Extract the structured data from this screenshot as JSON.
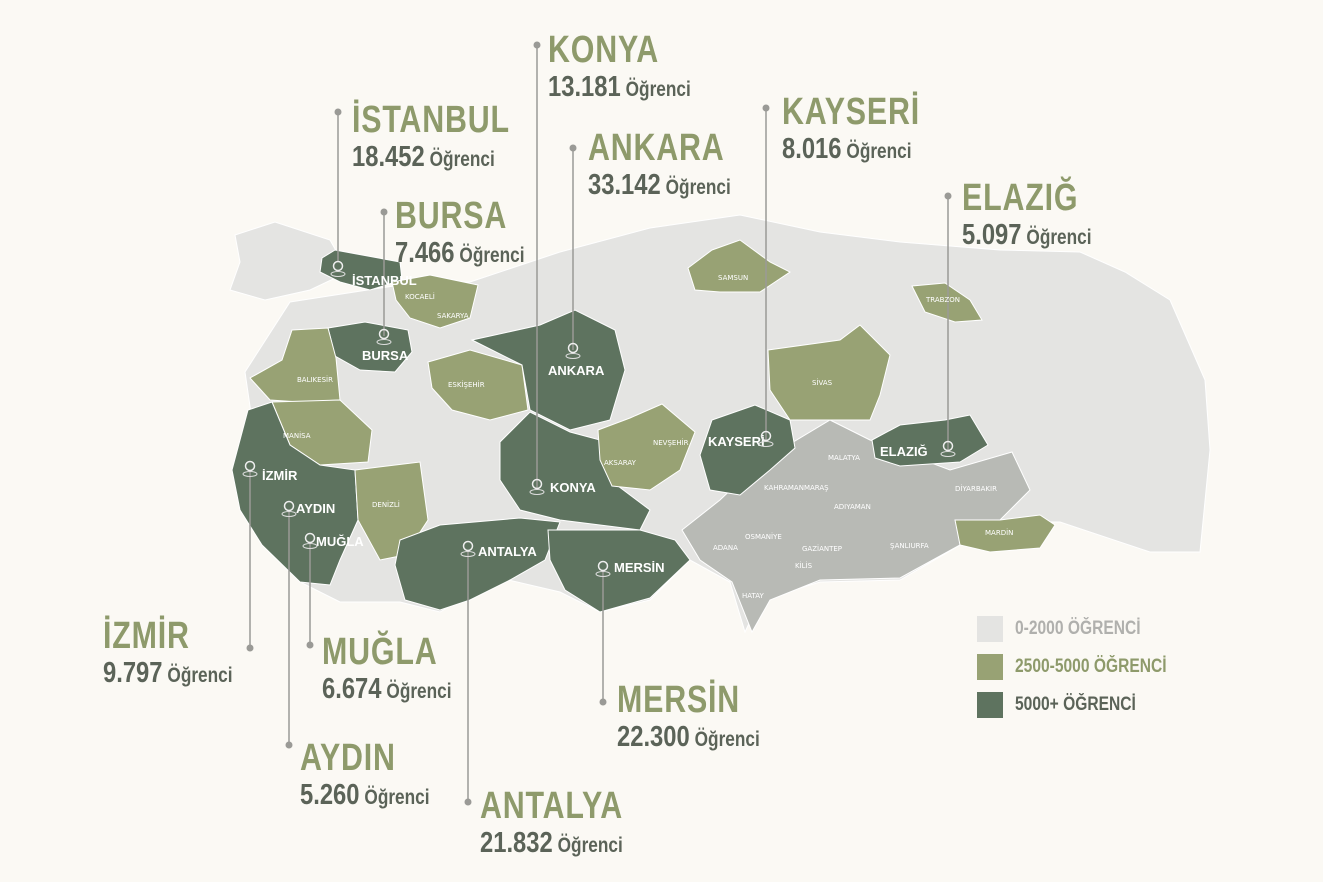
{
  "colors": {
    "background": "#fbf9f4",
    "low": "#e4e4e2",
    "mid": "#98a274",
    "high": "#5e735f",
    "southeast": "#b8bab5",
    "title": "#8e9a6b",
    "number": "#5b6358"
  },
  "legend": [
    {
      "label": "0-2000 ÖĞRENCİ",
      "color": "#e4e4e2",
      "text_color": "#b0b0ad"
    },
    {
      "label": "2500-5000 ÖĞRENCİ",
      "color": "#98a274",
      "text_color": "#8e9a6b"
    },
    {
      "label": "5000+ ÖĞRENCİ",
      "color": "#5e735f",
      "text_color": "#5b6358"
    }
  ],
  "callouts": {
    "konya": {
      "name": "KONYA",
      "value": "13.181",
      "unit": "Öğrenci"
    },
    "istanbul": {
      "name": "İSTANBUL",
      "value": "18.452",
      "unit": "Öğrenci"
    },
    "ankara": {
      "name": "ANKARA",
      "value": "33.142",
      "unit": "Öğrenci"
    },
    "kayseri": {
      "name": "KAYSERİ",
      "value": "8.016",
      "unit": "Öğrenci"
    },
    "elazig": {
      "name": "ELAZIĞ",
      "value": "5.097",
      "unit": "Öğrenci"
    },
    "bursa": {
      "name": "BURSA",
      "value": "7.466",
      "unit": "Öğrenci"
    },
    "izmir": {
      "name": "İZMİR",
      "value": "9.797",
      "unit": "Öğrenci"
    },
    "mugla": {
      "name": "MUĞLA",
      "value": "6.674",
      "unit": "Öğrenci"
    },
    "aydin": {
      "name": "AYDIN",
      "value": "5.260",
      "unit": "Öğrenci"
    },
    "antalya": {
      "name": "ANTALYA",
      "value": "21.832",
      "unit": "Öğrenci"
    },
    "mersin": {
      "name": "MERSİN",
      "value": "22.300",
      "unit": "Öğrenci"
    }
  },
  "map_labels": {
    "istanbul": "İSTANBUL",
    "bursa": "BURSA",
    "ankara": "ANKARA",
    "konya": "KONYA",
    "antalya": "ANTALYA",
    "mersin": "MERSİN",
    "kayseri": "KAYSERİ",
    "elazig": "ELAZIĞ",
    "izmir": "İZMİR",
    "aydin": "AYDIN",
    "mugla": "MUĞLA",
    "kocaeli": "KOCAELİ",
    "sakarya": "SAKARYA",
    "balikesir": "BALIKESİR",
    "manisa": "MANİSA",
    "eskisehir": "ESKİŞEHİR",
    "denizli": "DENİZLİ",
    "aksaray": "AKSARAY",
    "nevsehir": "NEVŞEHİR",
    "samsun": "SAMSUN",
    "trabzon": "TRABZON",
    "sivas": "SİVAS",
    "mardin": "MARDİN",
    "malatya": "MALATYA",
    "kahramanmaras": "KAHRAMANMARAŞ",
    "adiyaman": "ADIYAMAN",
    "diyarbakir": "DİYARBAKIR",
    "adana": "ADANA",
    "osmaniye": "OSMANİYE",
    "gaziantep": "GAZİANTEP",
    "kilis": "KİLİS",
    "sanliurfa": "ŞANLIURFA",
    "hatay": "HATAY"
  }
}
